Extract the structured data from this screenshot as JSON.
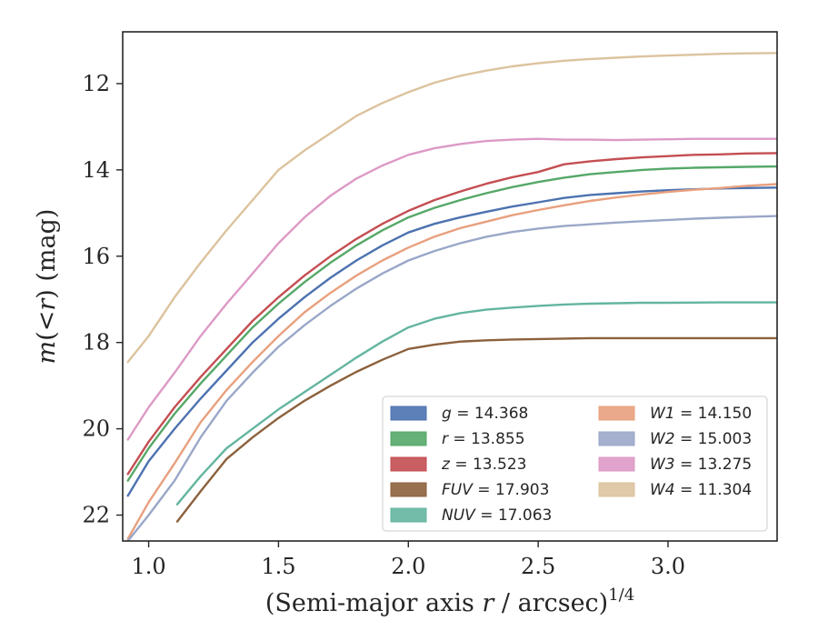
{
  "chart_data": {
    "type": "line",
    "xlabel": "(Semi-major axis r / arcsec)^1/4",
    "xlabel_parts": {
      "pre": "(Semi-major axis ",
      "var": "r",
      "post": " / arcsec)",
      "sup": "1/4"
    },
    "ylabel": "m(<r) (mag)",
    "ylabel_parts": {
      "var": "m",
      "mid": "(<",
      "var2": "r",
      "post": ") (mag)"
    },
    "xlim": [
      0.9,
      3.42
    ],
    "ylim": [
      22.6,
      10.8
    ],
    "y_inverted": true,
    "xticks": [
      1.0,
      1.5,
      2.0,
      2.5,
      3.0
    ],
    "xtick_labels": [
      "1.0",
      "1.5",
      "2.0",
      "2.5",
      "3.0"
    ],
    "yticks": [
      12,
      14,
      16,
      18,
      20,
      22
    ],
    "ytick_labels": [
      "12",
      "14",
      "16",
      "18",
      "20",
      "22"
    ],
    "grid": false,
    "legend_position": "lower-right",
    "series": [
      {
        "name": "g",
        "value": "14.368",
        "color": "#4c72b0",
        "points": [
          [
            0.92,
            21.55
          ],
          [
            1.0,
            20.75
          ],
          [
            1.1,
            20.0
          ],
          [
            1.2,
            19.3
          ],
          [
            1.3,
            18.65
          ],
          [
            1.4,
            18.0
          ],
          [
            1.5,
            17.45
          ],
          [
            1.6,
            16.95
          ],
          [
            1.7,
            16.5
          ],
          [
            1.8,
            16.1
          ],
          [
            1.9,
            15.75
          ],
          [
            2.0,
            15.45
          ],
          [
            2.1,
            15.25
          ],
          [
            2.2,
            15.1
          ],
          [
            2.3,
            14.97
          ],
          [
            2.4,
            14.85
          ],
          [
            2.5,
            14.75
          ],
          [
            2.6,
            14.65
          ],
          [
            2.7,
            14.58
          ],
          [
            2.8,
            14.54
          ],
          [
            2.9,
            14.5
          ],
          [
            3.0,
            14.47
          ],
          [
            3.1,
            14.45
          ],
          [
            3.2,
            14.43
          ],
          [
            3.3,
            14.42
          ],
          [
            3.42,
            14.41
          ]
        ]
      },
      {
        "name": "r",
        "value": "13.855",
        "color": "#55a868",
        "points": [
          [
            0.92,
            21.2
          ],
          [
            1.0,
            20.45
          ],
          [
            1.1,
            19.65
          ],
          [
            1.2,
            18.95
          ],
          [
            1.3,
            18.3
          ],
          [
            1.4,
            17.65
          ],
          [
            1.5,
            17.1
          ],
          [
            1.6,
            16.6
          ],
          [
            1.7,
            16.15
          ],
          [
            1.8,
            15.75
          ],
          [
            1.9,
            15.4
          ],
          [
            2.0,
            15.1
          ],
          [
            2.1,
            14.88
          ],
          [
            2.2,
            14.7
          ],
          [
            2.3,
            14.54
          ],
          [
            2.4,
            14.4
          ],
          [
            2.5,
            14.28
          ],
          [
            2.6,
            14.18
          ],
          [
            2.7,
            14.1
          ],
          [
            2.8,
            14.05
          ],
          [
            2.9,
            14.0
          ],
          [
            3.0,
            13.97
          ],
          [
            3.1,
            13.95
          ],
          [
            3.2,
            13.94
          ],
          [
            3.3,
            13.93
          ],
          [
            3.42,
            13.92
          ]
        ]
      },
      {
        "name": "z",
        "value": "13.523",
        "color": "#c44e52",
        "points": [
          [
            0.92,
            21.05
          ],
          [
            1.0,
            20.3
          ],
          [
            1.1,
            19.5
          ],
          [
            1.2,
            18.8
          ],
          [
            1.3,
            18.15
          ],
          [
            1.4,
            17.5
          ],
          [
            1.5,
            16.95
          ],
          [
            1.6,
            16.45
          ],
          [
            1.7,
            16.0
          ],
          [
            1.8,
            15.6
          ],
          [
            1.9,
            15.25
          ],
          [
            2.0,
            14.95
          ],
          [
            2.1,
            14.7
          ],
          [
            2.2,
            14.5
          ],
          [
            2.3,
            14.32
          ],
          [
            2.4,
            14.17
          ],
          [
            2.5,
            14.05
          ],
          [
            2.6,
            13.87
          ],
          [
            2.7,
            13.8
          ],
          [
            2.8,
            13.75
          ],
          [
            2.9,
            13.71
          ],
          [
            3.0,
            13.68
          ],
          [
            3.1,
            13.65
          ],
          [
            3.2,
            13.64
          ],
          [
            3.3,
            13.62
          ],
          [
            3.42,
            13.61
          ]
        ]
      },
      {
        "name": "FUV",
        "value": "17.903",
        "color": "#8c613c",
        "points": [
          [
            1.11,
            22.15
          ],
          [
            1.2,
            21.45
          ],
          [
            1.3,
            20.7
          ],
          [
            1.4,
            20.2
          ],
          [
            1.5,
            19.75
          ],
          [
            1.6,
            19.35
          ],
          [
            1.7,
            19.0
          ],
          [
            1.8,
            18.68
          ],
          [
            1.9,
            18.4
          ],
          [
            2.0,
            18.15
          ],
          [
            2.1,
            18.05
          ],
          [
            2.2,
            17.98
          ],
          [
            2.3,
            17.95
          ],
          [
            2.4,
            17.93
          ],
          [
            2.5,
            17.92
          ],
          [
            2.6,
            17.91
          ],
          [
            2.7,
            17.9
          ],
          [
            2.8,
            17.9
          ],
          [
            2.9,
            17.9
          ],
          [
            3.0,
            17.9
          ],
          [
            3.2,
            17.9
          ],
          [
            3.42,
            17.9
          ]
        ]
      },
      {
        "name": "NUV",
        "value": "17.063",
        "color": "#64b5a0",
        "points": [
          [
            1.11,
            21.75
          ],
          [
            1.2,
            21.1
          ],
          [
            1.3,
            20.45
          ],
          [
            1.4,
            20.0
          ],
          [
            1.5,
            19.55
          ],
          [
            1.6,
            19.15
          ],
          [
            1.7,
            18.75
          ],
          [
            1.8,
            18.35
          ],
          [
            1.9,
            17.98
          ],
          [
            2.0,
            17.65
          ],
          [
            2.1,
            17.45
          ],
          [
            2.2,
            17.32
          ],
          [
            2.3,
            17.24
          ],
          [
            2.4,
            17.19
          ],
          [
            2.5,
            17.15
          ],
          [
            2.6,
            17.12
          ],
          [
            2.7,
            17.1
          ],
          [
            2.8,
            17.09
          ],
          [
            2.9,
            17.08
          ],
          [
            3.0,
            17.08
          ],
          [
            3.2,
            17.07
          ],
          [
            3.42,
            17.07
          ]
        ]
      },
      {
        "name": "W1",
        "value": "14.150",
        "color": "#e8a07e",
        "points": [
          [
            0.92,
            22.55
          ],
          [
            1.0,
            21.7
          ],
          [
            1.1,
            20.8
          ],
          [
            1.2,
            19.85
          ],
          [
            1.3,
            19.1
          ],
          [
            1.4,
            18.45
          ],
          [
            1.5,
            17.85
          ],
          [
            1.6,
            17.3
          ],
          [
            1.7,
            16.85
          ],
          [
            1.8,
            16.45
          ],
          [
            1.9,
            16.1
          ],
          [
            2.0,
            15.8
          ],
          [
            2.1,
            15.55
          ],
          [
            2.2,
            15.35
          ],
          [
            2.3,
            15.2
          ],
          [
            2.4,
            15.05
          ],
          [
            2.5,
            14.93
          ],
          [
            2.6,
            14.82
          ],
          [
            2.7,
            14.72
          ],
          [
            2.8,
            14.64
          ],
          [
            2.9,
            14.57
          ],
          [
            3.0,
            14.51
          ],
          [
            3.1,
            14.46
          ],
          [
            3.2,
            14.42
          ],
          [
            3.3,
            14.37
          ],
          [
            3.42,
            14.33
          ]
        ]
      },
      {
        "name": "W2",
        "value": "15.003",
        "color": "#9aa7c8",
        "points": [
          [
            0.92,
            22.6
          ],
          [
            1.0,
            22.0
          ],
          [
            1.1,
            21.2
          ],
          [
            1.2,
            20.2
          ],
          [
            1.3,
            19.35
          ],
          [
            1.4,
            18.7
          ],
          [
            1.5,
            18.1
          ],
          [
            1.6,
            17.6
          ],
          [
            1.7,
            17.15
          ],
          [
            1.8,
            16.75
          ],
          [
            1.9,
            16.4
          ],
          [
            2.0,
            16.1
          ],
          [
            2.1,
            15.88
          ],
          [
            2.2,
            15.7
          ],
          [
            2.3,
            15.55
          ],
          [
            2.4,
            15.44
          ],
          [
            2.5,
            15.36
          ],
          [
            2.6,
            15.3
          ],
          [
            2.7,
            15.26
          ],
          [
            2.8,
            15.22
          ],
          [
            2.9,
            15.19
          ],
          [
            3.0,
            15.16
          ],
          [
            3.1,
            15.13
          ],
          [
            3.2,
            15.11
          ],
          [
            3.3,
            15.09
          ],
          [
            3.42,
            15.07
          ]
        ]
      },
      {
        "name": "W3",
        "value": "13.275",
        "color": "#dd9ac6",
        "points": [
          [
            0.92,
            20.25
          ],
          [
            1.0,
            19.5
          ],
          [
            1.1,
            18.7
          ],
          [
            1.2,
            17.85
          ],
          [
            1.3,
            17.1
          ],
          [
            1.4,
            16.4
          ],
          [
            1.5,
            15.7
          ],
          [
            1.6,
            15.1
          ],
          [
            1.7,
            14.6
          ],
          [
            1.8,
            14.2
          ],
          [
            1.9,
            13.9
          ],
          [
            2.0,
            13.65
          ],
          [
            2.1,
            13.5
          ],
          [
            2.2,
            13.4
          ],
          [
            2.3,
            13.33
          ],
          [
            2.4,
            13.3
          ],
          [
            2.5,
            13.28
          ],
          [
            2.6,
            13.3
          ],
          [
            2.7,
            13.3
          ],
          [
            2.8,
            13.31
          ],
          [
            2.9,
            13.3
          ],
          [
            3.0,
            13.29
          ],
          [
            3.1,
            13.28
          ],
          [
            3.2,
            13.28
          ],
          [
            3.3,
            13.28
          ],
          [
            3.42,
            13.28
          ]
        ]
      },
      {
        "name": "W4",
        "value": "11.304",
        "color": "#dcc39e",
        "points": [
          [
            0.92,
            18.45
          ],
          [
            1.0,
            17.85
          ],
          [
            1.1,
            16.95
          ],
          [
            1.2,
            16.15
          ],
          [
            1.3,
            15.4
          ],
          [
            1.4,
            14.7
          ],
          [
            1.5,
            14.0
          ],
          [
            1.6,
            13.55
          ],
          [
            1.7,
            13.15
          ],
          [
            1.8,
            12.75
          ],
          [
            1.9,
            12.45
          ],
          [
            2.0,
            12.2
          ],
          [
            2.1,
            11.98
          ],
          [
            2.2,
            11.82
          ],
          [
            2.3,
            11.7
          ],
          [
            2.4,
            11.6
          ],
          [
            2.5,
            11.53
          ],
          [
            2.6,
            11.47
          ],
          [
            2.7,
            11.43
          ],
          [
            2.8,
            11.4
          ],
          [
            2.9,
            11.37
          ],
          [
            3.0,
            11.35
          ],
          [
            3.1,
            11.33
          ],
          [
            3.2,
            11.31
          ],
          [
            3.3,
            11.3
          ],
          [
            3.42,
            11.29
          ]
        ]
      }
    ]
  }
}
